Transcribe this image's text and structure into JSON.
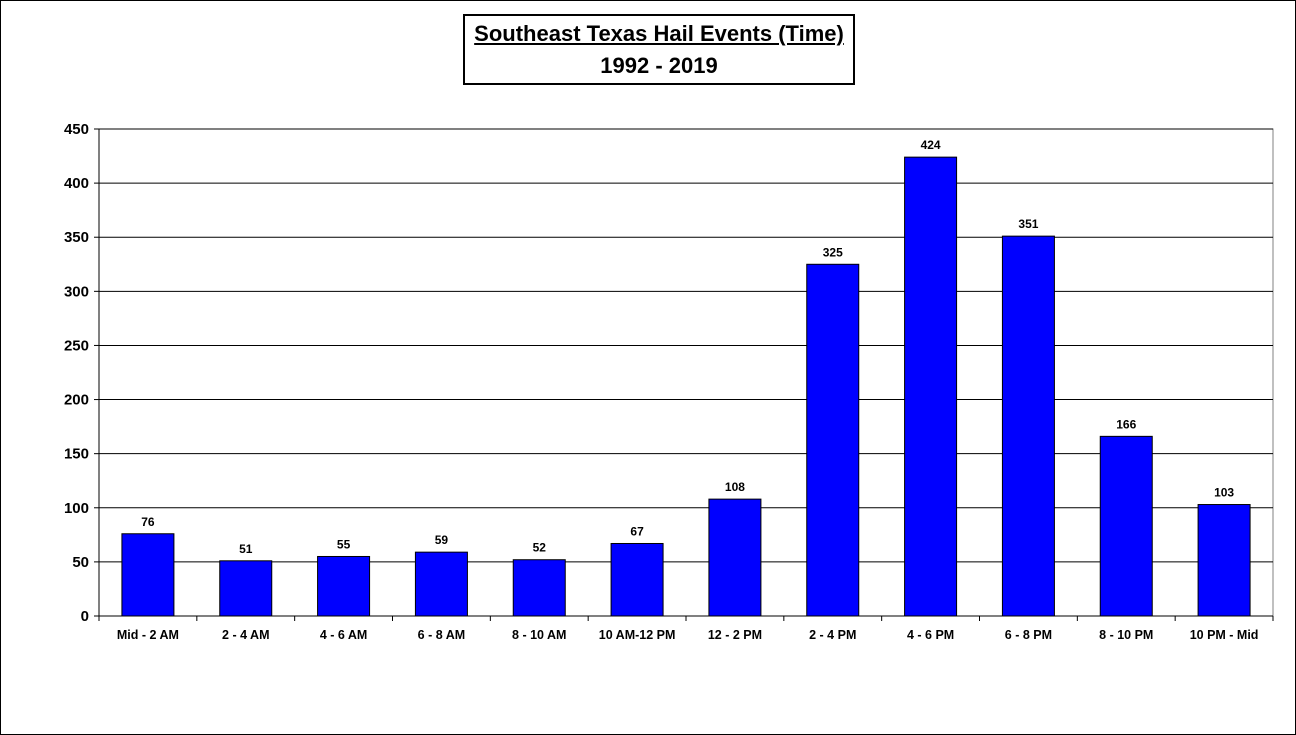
{
  "chart_data": {
    "type": "bar",
    "title": "Southeast Texas Hail Events (Time)",
    "subtitle": "1992 - 2019",
    "xlabel": "",
    "ylabel": "",
    "ylim": [
      0,
      450
    ],
    "yticks": [
      0,
      50,
      100,
      150,
      200,
      250,
      300,
      350,
      400,
      450
    ],
    "grid": true,
    "categories": [
      "Mid - 2 AM",
      "2 - 4 AM",
      "4 - 6 AM",
      "6 - 8 AM",
      "8 - 10 AM",
      "10 AM-12 PM",
      "12 - 2 PM",
      "2 - 4 PM",
      "4 - 6 PM",
      "6 - 8 PM",
      "8 - 10 PM",
      "10 PM - Mid"
    ],
    "values": [
      76,
      51,
      55,
      59,
      52,
      67,
      108,
      325,
      424,
      351,
      166,
      103
    ],
    "bar_color": "#0000FF"
  }
}
